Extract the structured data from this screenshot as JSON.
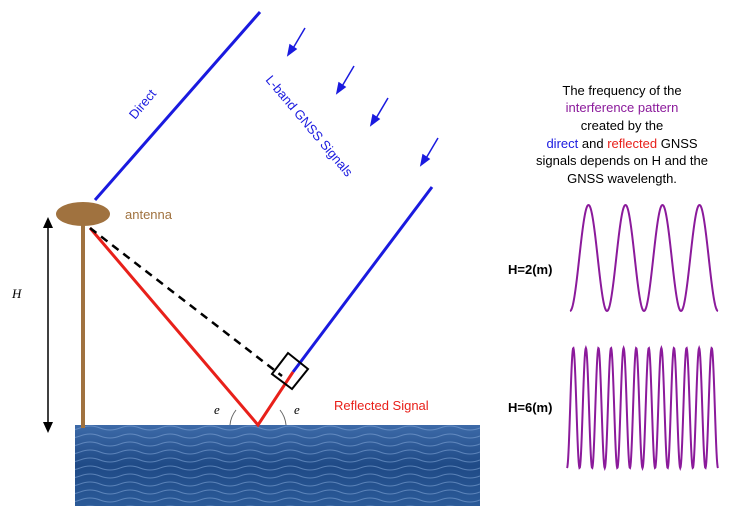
{
  "labels": {
    "direct": "Direct",
    "signals": "L-band GNSS Signals",
    "antenna": "antenna",
    "height": "H",
    "angle_left": "e",
    "angle_right": "e",
    "reflected": "Reflected Signal"
  },
  "description": {
    "line1": "The frequency of the",
    "line2": "interference pattern",
    "line3": "created by the",
    "line4_a": "direct",
    "line4_b": "and",
    "line4_c": "reflected",
    "line4_d": "GNSS",
    "line5": "signals  depends on H and the",
    "line6": "GNSS wavelength."
  },
  "waves": [
    {
      "label": "H=2(m)"
    },
    {
      "label": "H=6(m)"
    }
  ]
}
